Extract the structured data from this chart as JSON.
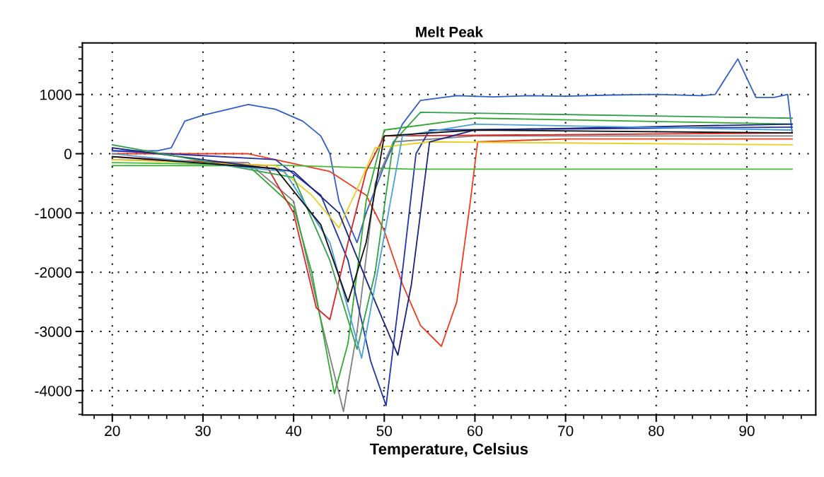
{
  "chart_data": {
    "type": "line",
    "title": "Melt Peak",
    "xlabel": "Temperature, Celsius",
    "xlim": [
      16.7,
      97.6
    ],
    "ylim": [
      -4410,
      1870
    ],
    "xticks": [
      20,
      30,
      40,
      50,
      60,
      70,
      80,
      90
    ],
    "yticks": [
      -4000,
      -3000,
      -2000,
      -1000,
      0,
      1000
    ],
    "grid": true,
    "line_style": "solid",
    "marker": "none",
    "series": [
      {
        "color": "#2f5fc8",
        "x": [
          20,
          25,
          26.5,
          28,
          30,
          35,
          38,
          41,
          43,
          44,
          45,
          47,
          48,
          50,
          52,
          54,
          58,
          62,
          66,
          70,
          75,
          80,
          85,
          86.5,
          89,
          91,
          93,
          94.5,
          95
        ],
        "values": [
          50,
          50,
          100,
          550,
          650,
          830,
          750,
          550,
          300,
          0,
          -800,
          -1500,
          -1000,
          -200,
          500,
          900,
          980,
          960,
          980,
          970,
          990,
          1000,
          980,
          1000,
          1600,
          950,
          950,
          1000,
          350
        ]
      },
      {
        "color": "#f03c1e",
        "x": [
          20,
          35,
          44,
          48,
          50,
          52,
          54,
          56.3,
          58,
          59.5,
          60.3,
          70,
          95
        ],
        "values": [
          0,
          0,
          -300,
          -700,
          -1300,
          -2200,
          -2900,
          -3250,
          -2500,
          -800,
          200,
          250,
          250
        ]
      },
      {
        "color": "#808080",
        "x": [
          20,
          35,
          40,
          43,
          45.5,
          47,
          49,
          51,
          60,
          95
        ],
        "values": [
          -100,
          -150,
          -800,
          -2800,
          -4350,
          -3000,
          -500,
          200,
          300,
          300
        ]
      },
      {
        "color": "#2faa2f",
        "x": [
          20,
          35,
          40,
          42,
          44.5,
          46,
          48,
          50,
          60,
          95
        ],
        "values": [
          -200,
          -200,
          -900,
          -2000,
          -4050,
          -3200,
          -800,
          400,
          600,
          500
        ]
      },
      {
        "color": "#2233aa",
        "x": [
          20,
          38,
          43,
          46,
          48.5,
          50.2,
          52,
          53.5,
          55,
          95
        ],
        "values": [
          50,
          -100,
          -700,
          -1800,
          -3500,
          -4250,
          -2000,
          0,
          400,
          450
        ]
      },
      {
        "color": "#44bb33",
        "x": [
          20,
          40,
          53,
          95
        ],
        "values": [
          -150,
          -200,
          -260,
          -260
        ]
      },
      {
        "color": "#dd2222",
        "x": [
          20,
          37,
          40,
          42.5,
          44,
          46,
          48,
          50,
          95
        ],
        "values": [
          -50,
          -200,
          -1000,
          -2600,
          -2800,
          -1500,
          -300,
          300,
          350
        ]
      },
      {
        "color": "#e8d020",
        "x": [
          20,
          38,
          42,
          45,
          47,
          49,
          55,
          95
        ],
        "values": [
          -100,
          -200,
          -700,
          -1250,
          -600,
          100,
          200,
          150
        ]
      },
      {
        "color": "#1a237e",
        "x": [
          20,
          40,
          45,
          49,
          51.5,
          53,
          55,
          60,
          95
        ],
        "values": [
          100,
          -300,
          -1000,
          -2500,
          -3400,
          -2200,
          200,
          400,
          500
        ]
      },
      {
        "color": "#33a04a",
        "x": [
          20,
          40,
          44,
          47,
          49,
          51,
          54,
          95
        ],
        "values": [
          150,
          -400,
          -1800,
          -3300,
          -2000,
          200,
          700,
          600
        ]
      },
      {
        "color": "#4aa0d8",
        "x": [
          20,
          39,
          44,
          47.5,
          49.5,
          52,
          60,
          95
        ],
        "values": [
          0,
          -300,
          -1500,
          -3450,
          -1800,
          300,
          500,
          400
        ]
      },
      {
        "color": "#111111",
        "x": [
          20,
          38,
          43,
          46,
          48,
          50,
          60,
          95
        ],
        "values": [
          -50,
          -250,
          -1200,
          -2500,
          -1500,
          300,
          400,
          350
        ]
      }
    ]
  }
}
